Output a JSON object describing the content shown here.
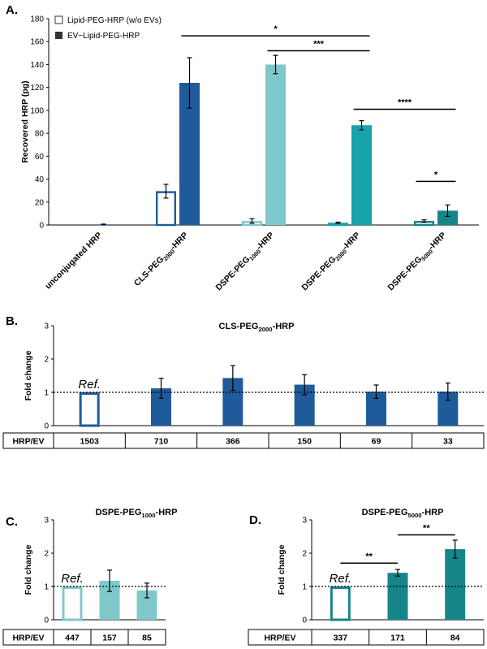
{
  "colors": {
    "dark_blue": "#1f5b9a",
    "light_teal": "#7ec8cc",
    "mid_teal": "#16a3aa",
    "dark_teal": "#16858a",
    "black": "#000000",
    "white": "#ffffff"
  },
  "chart_data": [
    {
      "panel": "A.",
      "type": "bar",
      "title": "",
      "ylabel": "Recovered HRP (pg)",
      "ylim": [
        0,
        180
      ],
      "yticks": [
        0,
        20,
        40,
        60,
        80,
        100,
        120,
        140,
        160,
        180
      ],
      "categories": [
        "unconjugated HRP",
        "CLS-PEG2000-HRP",
        "DSPE-PEG1000-HRP",
        "DSPE-PEG2000-HRP",
        "DSPE-PEG5000-HRP"
      ],
      "category_labels": [
        {
          "main": "unconjugated HRP",
          "sub": "",
          "tail": ""
        },
        {
          "main": "CLS-PEG",
          "sub": "2000",
          "tail": "-HRP"
        },
        {
          "main": "DSPE-PEG",
          "sub": "1000",
          "tail": "-HRP"
        },
        {
          "main": "DSPE-PEG",
          "sub": "2000",
          "tail": "-HRP"
        },
        {
          "main": "DSPE-PEG",
          "sub": "5000",
          "tail": "-HRP"
        }
      ],
      "legend": {
        "position": "top-left",
        "entries": [
          {
            "label": "Lipid-PEG-HRP (w/o EVs)",
            "style": "open"
          },
          {
            "label": "EV~Lipid-PEG-HRP",
            "style": "filled"
          }
        ]
      },
      "series": [
        {
          "name": "Lipid-PEG-HRP (w/o EVs)",
          "values": [
            0,
            29.5,
            3.5,
            2,
            3.5
          ],
          "errors": [
            0,
            6,
            2,
            0.5,
            1
          ],
          "colors": [
            "#1f5b9a",
            "#1f5b9a",
            "#7ec8cc",
            "#16a3aa",
            "#16858a"
          ]
        },
        {
          "name": "EV~Lipid-PEG-HRP",
          "values": [
            0.5,
            124,
            140,
            87,
            12.5
          ],
          "errors": [
            0.3,
            22,
            8,
            4,
            5
          ],
          "colors": [
            "#1f5b9a",
            "#1f5b9a",
            "#7ec8cc",
            "#16a3aa",
            "#16858a"
          ]
        }
      ],
      "significance": [
        {
          "label": "*",
          "from_group": 1,
          "from_series": 1,
          "to_group": 3,
          "to_series": 1,
          "y": 165
        },
        {
          "label": "***",
          "from_group": 2,
          "from_series": 1,
          "to_group": 3,
          "to_series": 1,
          "y": 152
        },
        {
          "label": "****",
          "from_group": 3,
          "from_series": 1,
          "to_group": 4,
          "to_series": 1,
          "y": 101
        },
        {
          "label": "*",
          "from_group": 4,
          "from_series": 0,
          "to_group": 4,
          "to_series": 1,
          "y": 38
        }
      ]
    },
    {
      "panel": "B.",
      "type": "bar",
      "title": {
        "main": "CLS-PEG",
        "sub": "2000",
        "tail": "-HRP"
      },
      "ylabel": "Fold change",
      "ylim": [
        0,
        3
      ],
      "yticks": [
        0,
        1,
        2,
        3
      ],
      "reference_line": 1,
      "ref_label": "Ref.",
      "table_header": "HRP/EV",
      "categories": [
        "1503",
        "710",
        "366",
        "150",
        "69",
        "33"
      ],
      "values": [
        1,
        1.12,
        1.43,
        1.23,
        1.02,
        1.02
      ],
      "errors": [
        0,
        0.3,
        0.37,
        0.3,
        0.2,
        0.26
      ],
      "open_first": true,
      "color": "#1f5b9a",
      "significance": []
    },
    {
      "panel": "C.",
      "type": "bar",
      "title": {
        "main": "DSPE-PEG",
        "sub": "1000",
        "tail": "-HRP"
      },
      "ylabel": "Fold change",
      "ylim": [
        0,
        3
      ],
      "yticks": [
        0,
        1,
        2,
        3
      ],
      "reference_line": 1,
      "ref_label": "Ref.",
      "table_header": "HRP/EV",
      "categories": [
        "447",
        "157",
        "85"
      ],
      "values": [
        1,
        1.17,
        0.88
      ],
      "errors": [
        0,
        0.32,
        0.22
      ],
      "open_first": true,
      "color": "#7ec8cc",
      "significance": []
    },
    {
      "panel": "D.",
      "type": "bar",
      "title": {
        "main": "DSPE-PEG",
        "sub": "5000",
        "tail": "-HRP"
      },
      "ylabel": "Fold change",
      "ylim": [
        0,
        3
      ],
      "yticks": [
        0,
        1,
        2,
        3
      ],
      "reference_line": 1,
      "ref_label": "Ref.",
      "table_header": "HRP/EV",
      "categories": [
        "337",
        "171",
        "84"
      ],
      "values": [
        1,
        1.41,
        2.12
      ],
      "errors": [
        0,
        0.1,
        0.27
      ],
      "open_first": true,
      "color": "#16858a",
      "significance": [
        {
          "label": "**",
          "from": 0,
          "to": 1,
          "y": 1.7
        },
        {
          "label": "**",
          "from": 1,
          "to": 2,
          "y": 2.55
        }
      ]
    }
  ]
}
